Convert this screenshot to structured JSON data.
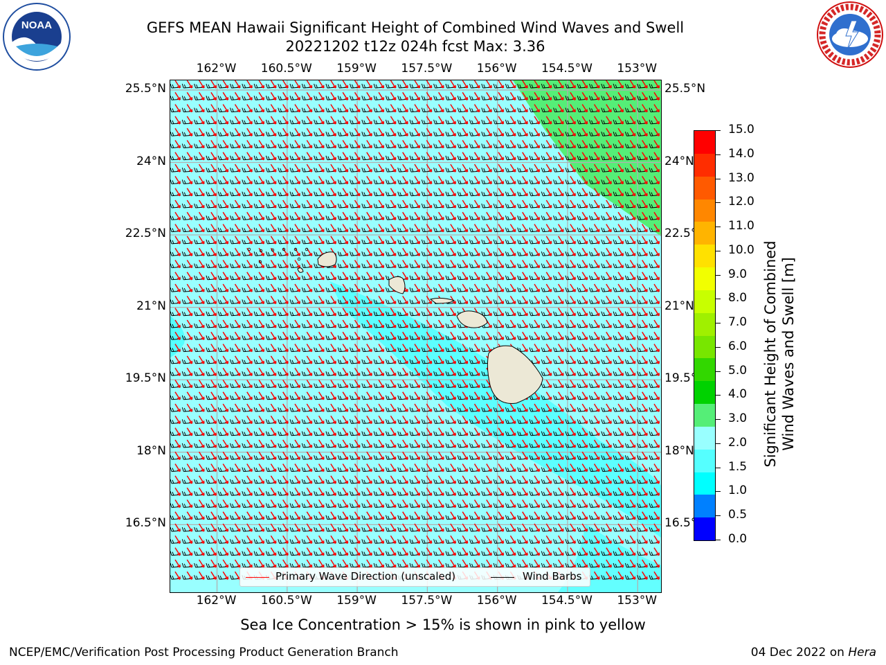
{
  "title": {
    "line1": "GEFS MEAN Hawaii Significant Height of Combined Wind Waves and Swell",
    "line2": "20221202 t12z 024h fcst   Max: 3.36"
  },
  "footer_note": "Sea Ice Concentration > 15% is shown in pink to yellow",
  "credit_left": "NCEP/EMC/Verification Post Processing Product Generation Branch",
  "credit_date": "04 Dec 2022 on ",
  "credit_host": "Hera",
  "logos": {
    "left": "NOAA",
    "right": "NATIONAL WEATHER SERVICE"
  },
  "map": {
    "lon_labels": [
      "162°W",
      "160.5°W",
      "159°W",
      "157.5°W",
      "156°W",
      "154.5°W",
      "153°W"
    ],
    "lat_labels": [
      "25.5°N",
      "24°N",
      "22.5°N",
      "21°N",
      "19.5°N",
      "18°N",
      "16.5°N"
    ],
    "lon_values": [
      -162,
      -160.5,
      -159,
      -157.5,
      -156,
      -154.5,
      -153
    ],
    "lat_values": [
      25.5,
      24,
      22.5,
      21,
      19.5,
      18,
      16.5
    ],
    "extent": {
      "lon_min": -163.0,
      "lon_max": -152.5,
      "lat_min": 15.1,
      "lat_max": 25.7
    },
    "ocean_color": "#99ffff",
    "wave_arrow_color": "#ff0000",
    "barb_color": "#000000",
    "land_color": "#ece8d6"
  },
  "legend": {
    "primary_wave": "Primary Wave Direction (unscaled)",
    "wind_barbs": "Wind Barbs"
  },
  "colorbar": {
    "label_line1": "Significant Height of Combined",
    "label_line2": "Wind Waves and Swell [m]",
    "ticks": [
      "15.0",
      "14.0",
      "13.0",
      "12.0",
      "11.0",
      "10.0",
      "9.0",
      "8.0",
      "7.0",
      "6.0",
      "5.0",
      "4.0",
      "3.0",
      "2.0",
      "1.5",
      "1.0",
      "0.5",
      "0.0"
    ],
    "colors_top_to_bottom": [
      "#ff0000",
      "#ff2d00",
      "#ff5a00",
      "#ff8700",
      "#ffb400",
      "#ffe100",
      "#f2ff00",
      "#c8ff00",
      "#a0f000",
      "#78e600",
      "#32d700",
      "#00d200",
      "#55ee77",
      "#99ffff",
      "#55ffff",
      "#00ffff",
      "#0080ff",
      "#0000ff"
    ]
  }
}
